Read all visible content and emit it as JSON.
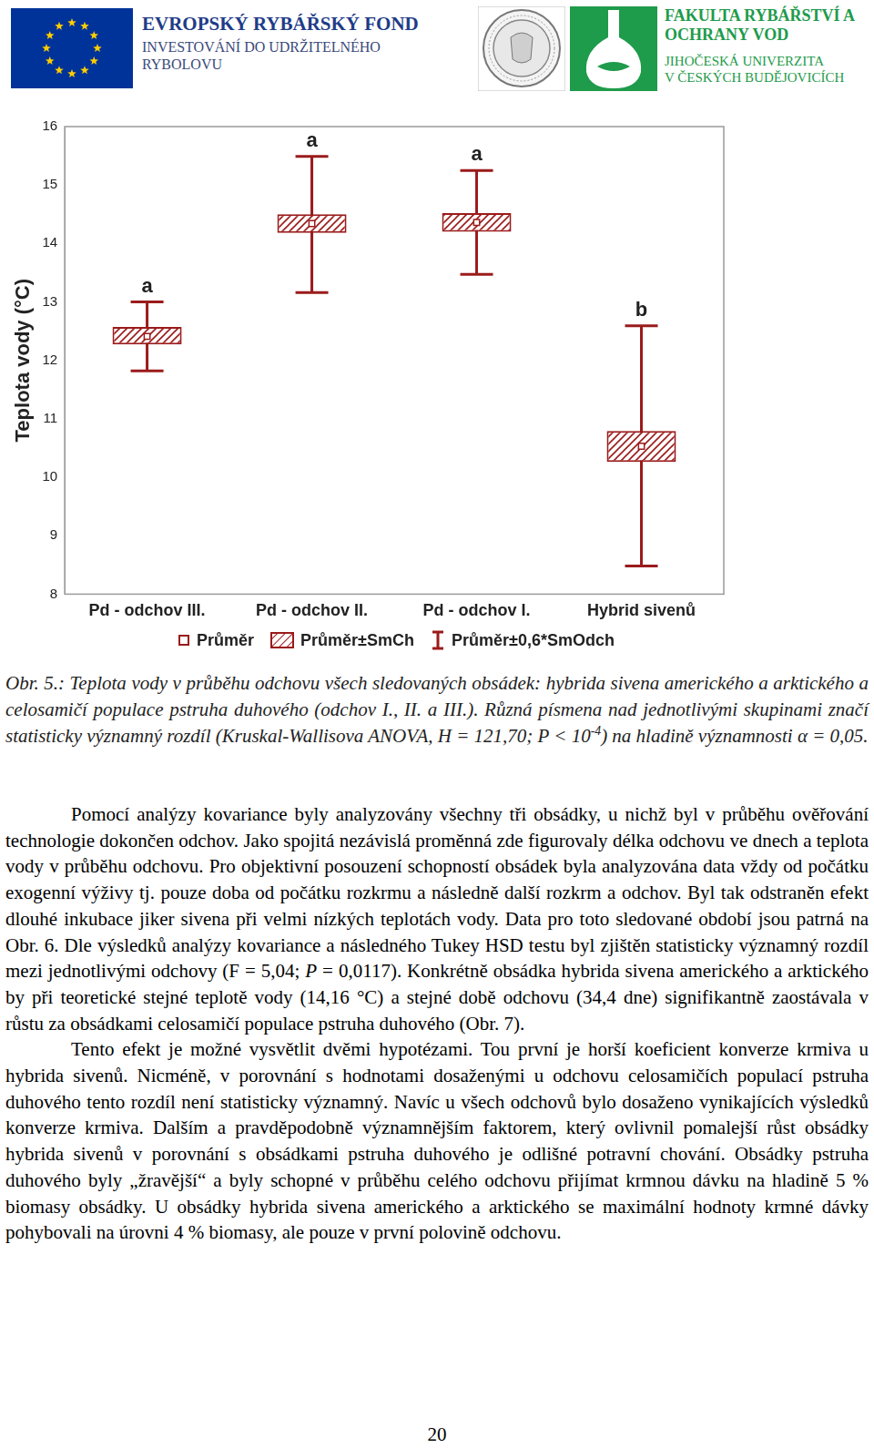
{
  "header": {
    "left_title": "EVROPSKÝ RYBÁŘSKÝ FOND",
    "left_lines": [
      "INVESTOVÁNÍ DO UDRŽITELNÉHO",
      "RYBOLOVU"
    ],
    "right_title_lines": [
      "FAKULTA RYBÁŘSTVÍ A",
      "OCHRANY VOD"
    ],
    "right_lines": [
      "JIHOČESKÁ UNIVERZITA",
      "V ČESKÝCH BUDĚJOVICÍCH"
    ]
  },
  "chart_data": {
    "type": "box",
    "categories": [
      "Pd - odchov III.",
      "Pd - odchov II.",
      "Pd - odchov I.",
      "Hybrid sivenů"
    ],
    "mean": [
      12.41,
      14.34,
      14.36,
      10.53
    ],
    "se_low": [
      12.27,
      14.18,
      14.2,
      10.26
    ],
    "se_high": [
      12.57,
      14.5,
      14.52,
      10.79
    ],
    "whisker_low": [
      11.82,
      13.16,
      13.47,
      8.48
    ],
    "whisker_high": [
      13.0,
      15.49,
      15.25,
      12.59
    ],
    "group_letters": [
      "a",
      "a",
      "a",
      "b"
    ],
    "ylabel": "Teplota vody (°C)",
    "ylim": [
      8,
      16
    ],
    "yticks": [
      8,
      9,
      10,
      11,
      12,
      13,
      14,
      15,
      16
    ],
    "grid": false,
    "legend": "bottom",
    "legend_entries": [
      "Průměr",
      "Průměr±SmCh",
      "Průměr±0,6*SmOdch"
    ],
    "color": "#9b1b1b"
  },
  "caption": [
    {
      "text": "Obr. 5.: Teplota vody v průběhu odchovu všech sledovaných obsádek: hybrida sivena amerického a arktického a celosamičí populace pstruha duhového (odchov I., II. a III.). Různá písmena nad jednotlivými skupinami značí statisticky významný rozdíl (Kruskal-Wallisova ANOVA, H = 121,70; P < 10"
    },
    {
      "text": "-4",
      "sup": true
    },
    {
      "text": ") na hladině významnosti α = 0,05."
    }
  ],
  "paragraphs": [
    [
      {
        "text": "Pomocí analýzy kovariance byly analyzovány všechny tři obsádky, u nichž byl v průběhu ověřování technologie dokončen odchov. Jako spojitá nezávislá proměnná zde figurovaly délka odchovu ve dnech a teplota vody v průběhu odchovu. Pro objektivní posouzení schopností obsádek byla analyzována data vždy od počátku exogenní výživy tj. pouze doba od počátku rozkrmu a následně další rozkrm a odchov. Byl tak odstraněn efekt dlouhé inkubace jiker sivena při velmi nízkých teplotách vody. Data pro toto sledované období jsou patrná na Obr. 6. Dle výsledků analýzy kovariance a následného Tukey HSD testu byl zjištěn statisticky významný rozdíl mezi jednotlivými odchovy (F = 5,04; "
      },
      {
        "text": "P",
        "italic": true
      },
      {
        "text": " = 0,0117). Konkrétně obsádka hybrida sivena amerického a arktického by při teoretické stejné teplotě vody (14,16 °C) a stejné době odchovu (34,4 dne) signifikantně zaostávala v růstu za obsádkami celosamičí populace pstruha duhového (Obr. 7)."
      }
    ],
    [
      {
        "text": "Tento efekt je možné vysvětlit dvěmi hypotézami. Tou první je horší koeficient konverze krmiva u hybrida sivenů. Nicméně, v porovnání s hodnotami dosaženými u odchovu celosamičích populací pstruha duhového tento rozdíl není statisticky významný. Navíc u všech odchovů bylo dosaženo vynikajících výsledků konverze krmiva. Dalším a pravděpodobně významnějším faktorem, který ovlivnil pomalejší růst obsádky hybrida sivenů v porovnání s obsádkami pstruha duhového je odlišné potravní chování. Obsádky pstruha duhového byly „žravější“ a byly schopné v průběhu celého odchovu přijímat krmnou dávku na hladině 5 % biomasy obsádky. U obsádky hybrida sivena amerického a arktického se maximální hodnoty krmné dávky pohybovali na úrovni 4 % biomasy, ale pouze v první polovině odchovu."
      }
    ]
  ],
  "page_number": "20"
}
